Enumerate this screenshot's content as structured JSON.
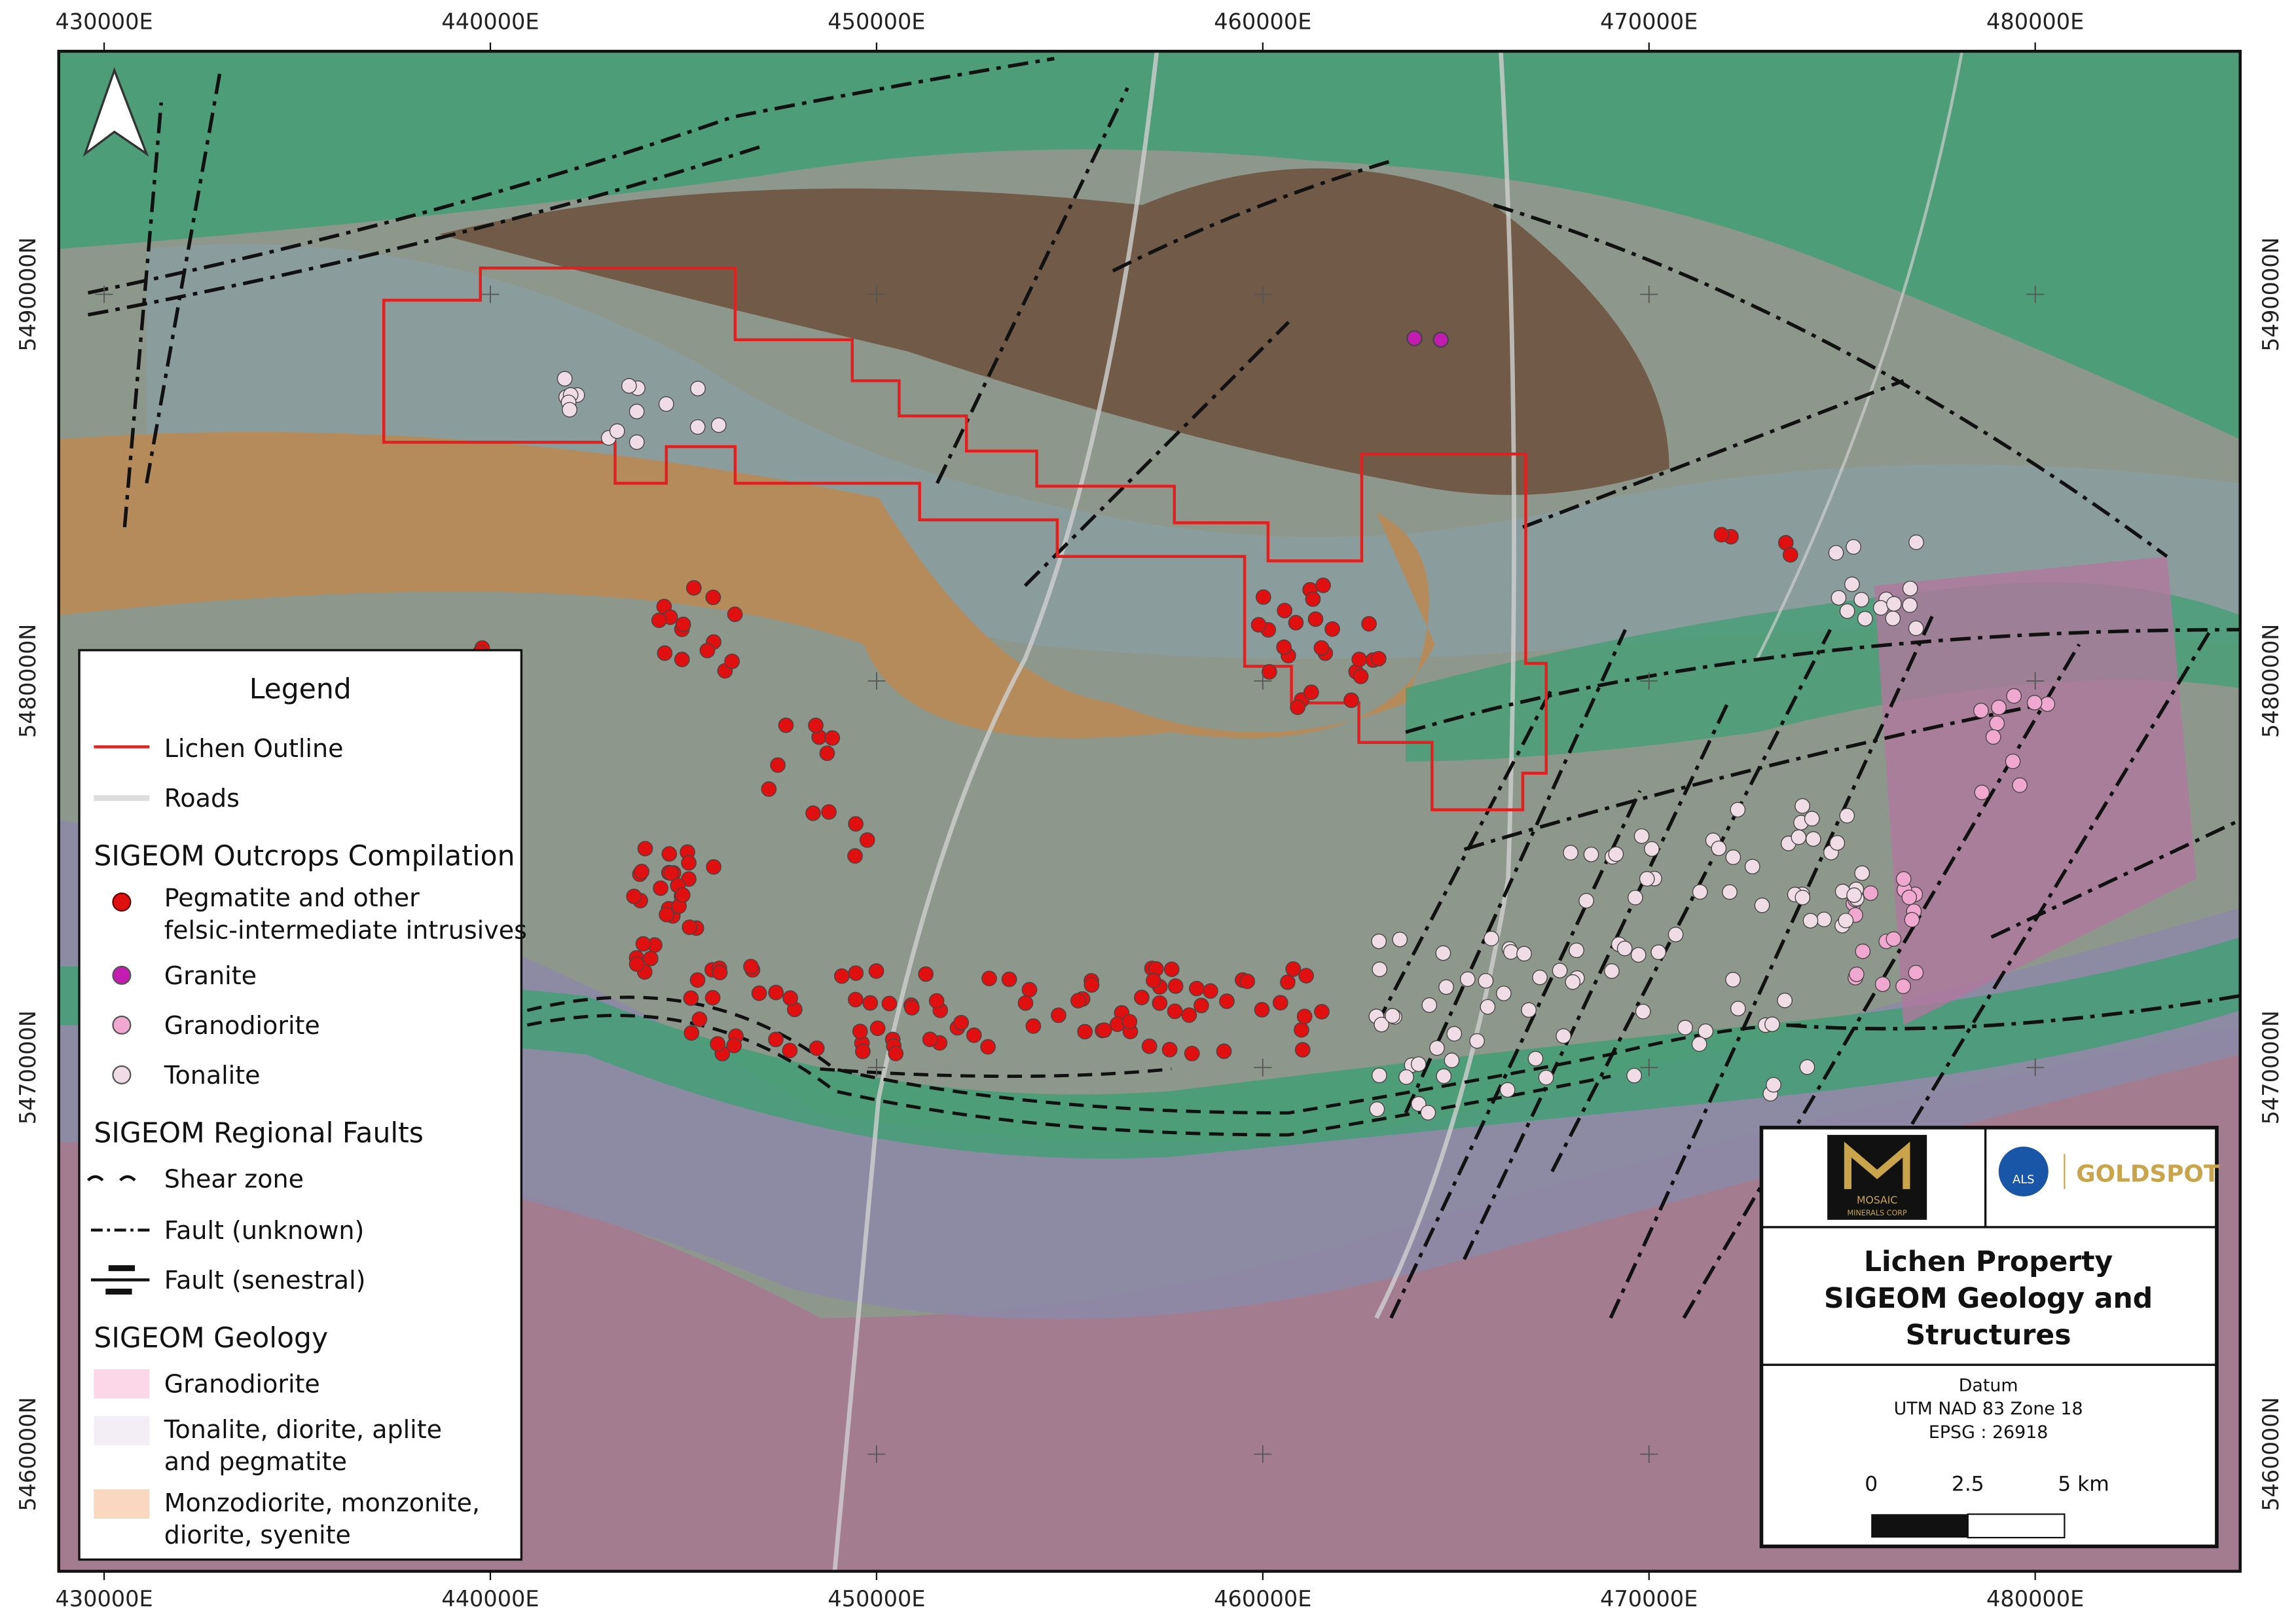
{
  "map": {
    "x_labels": [
      "430000E",
      "440000E",
      "450000E",
      "460000E",
      "470000E",
      "480000E"
    ],
    "y_labels": [
      "5490000N",
      "5480000N",
      "5470000N",
      "5460000N"
    ]
  },
  "legend": {
    "title": "Legend",
    "outline": "Lichen Outline",
    "roads": "Roads",
    "outcrops": {
      "heading": "SIGEOM Outcrops Compilation",
      "items": [
        [
          "Pegmatite and other",
          "felsic-intermediate intrusives"
        ],
        [
          "Granite"
        ],
        [
          "Granodiorite"
        ],
        [
          "Tonalite"
        ]
      ]
    },
    "faults": {
      "heading": "SIGEOM Regional Faults",
      "items": [
        "Shear zone",
        "Fault (unknown)",
        "Fault (senestral)"
      ]
    },
    "geology": {
      "heading": "SIGEOM Geology",
      "items": [
        [
          "Granodiorite"
        ],
        [
          "Tonalite, diorite, aplite",
          "and pegmatite"
        ],
        [
          "Monzodiorite, monzonite,",
          "diorite, syenite"
        ]
      ]
    }
  },
  "title_block": {
    "logo_left": [
      "MOSAIC",
      "MINERALS CORP"
    ],
    "logo_right": [
      "ALS",
      "GOLDSPOT"
    ],
    "title": [
      "Lichen Property",
      "SIGEOM Geology and",
      "Structures"
    ],
    "datum": [
      "Datum",
      "UTM NAD 83 Zone 18",
      "EPSG : 26918"
    ],
    "scale": [
      "0",
      "2.5",
      "5 km"
    ]
  }
}
